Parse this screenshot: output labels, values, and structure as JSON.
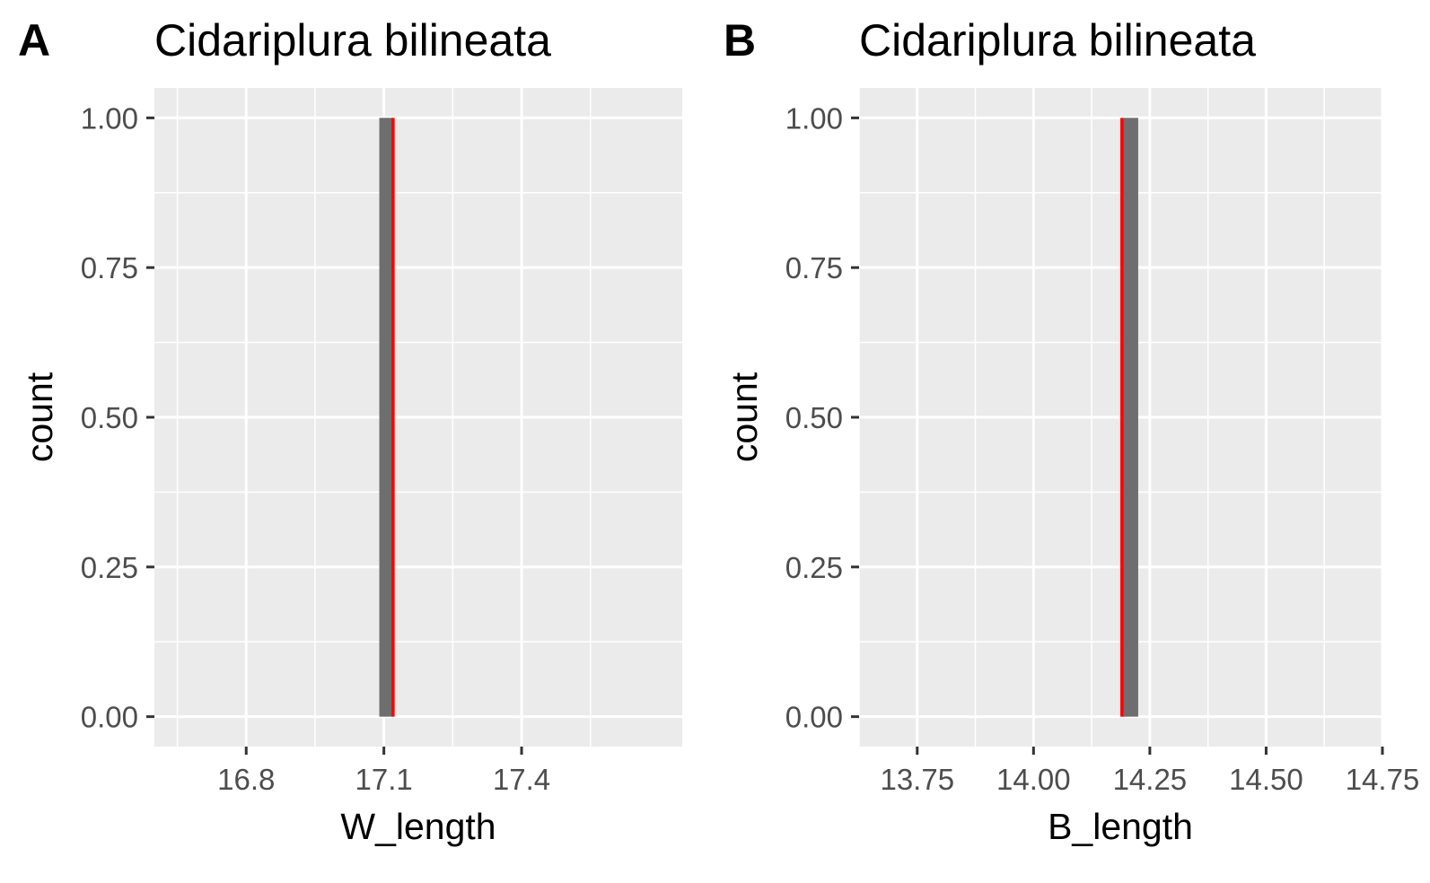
{
  "chart_data": [
    {
      "panel_label": "A",
      "type": "bar",
      "title": "Cidariplura bilineata",
      "xlabel": "W_length",
      "ylabel": "count",
      "xlim": [
        16.6,
        17.75
      ],
      "ylim": [
        -0.05,
        1.05
      ],
      "x_ticks": [
        16.8,
        17.1,
        17.4
      ],
      "x_tick_labels": [
        "16.8",
        "17.1",
        "17.4"
      ],
      "y_ticks": [
        0,
        0.25,
        0.5,
        0.75,
        1
      ],
      "y_tick_labels": [
        "0.00",
        "0.25",
        "0.50",
        "0.75",
        "1.00"
      ],
      "bars": [
        {
          "x0": 17.09,
          "x1": 17.12,
          "count": 1
        }
      ],
      "vline": 17.12,
      "grid": true,
      "colors": {
        "bar": "#6e6e6e",
        "vline": "#ff0000",
        "panel": "#ebebeb"
      }
    },
    {
      "panel_label": "B",
      "type": "bar",
      "title": "Cidariplura bilineata",
      "xlabel": "B_length",
      "ylabel": "count",
      "xlim": [
        13.625,
        14.75
      ],
      "ylim": [
        -0.05,
        1.05
      ],
      "x_ticks": [
        13.75,
        14.0,
        14.25,
        14.5,
        14.75
      ],
      "x_tick_labels": [
        "13.75",
        "14.00",
        "14.25",
        "14.50",
        "14.75"
      ],
      "y_ticks": [
        0,
        0.25,
        0.5,
        0.75,
        1
      ],
      "y_tick_labels": [
        "0.00",
        "0.25",
        "0.50",
        "0.75",
        "1.00"
      ],
      "bars": [
        {
          "x0": 14.19,
          "x1": 14.225,
          "count": 1
        }
      ],
      "vline": 14.19,
      "grid": true,
      "colors": {
        "bar": "#6e6e6e",
        "vline": "#ff0000",
        "panel": "#ebebeb"
      }
    }
  ]
}
